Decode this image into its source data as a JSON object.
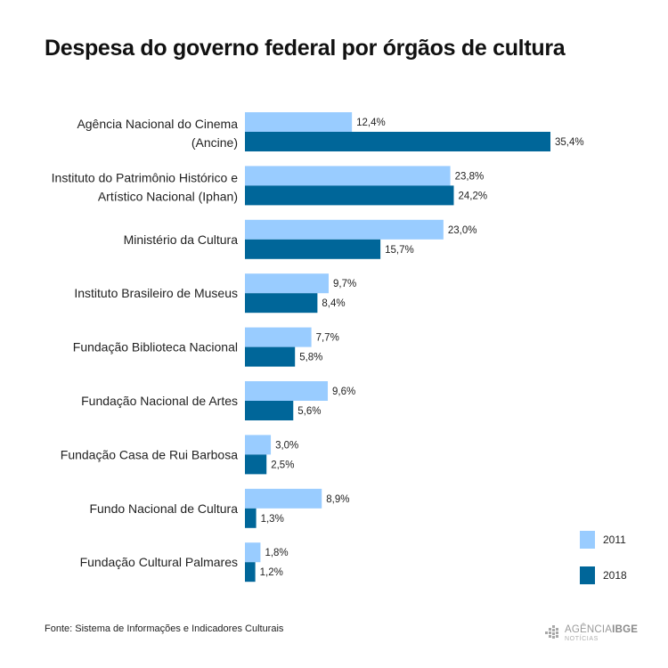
{
  "title": "Despesa do governo federal por órgãos de cultura",
  "source": "Fonte:  Sistema de Informações e Indicadores Culturais",
  "logo": {
    "brand": "AGÊNCIA",
    "brand_bold": "IBGE",
    "sub": "NOTÍCIAS"
  },
  "colors": {
    "2011": "#99ccff",
    "2018": "#006699"
  },
  "legend": [
    {
      "label": "2011",
      "color": "#99ccff"
    },
    {
      "label": "2018",
      "color": "#006699"
    }
  ],
  "chart_data": {
    "type": "bar",
    "orientation": "horizontal",
    "title": "Despesa do governo federal por órgãos de cultura",
    "categories": [
      [
        "Agência Nacional do Cinema",
        "(Ancine)"
      ],
      [
        "Instituto do Patrimônio Histórico e",
        "Artístico Nacional (Iphan)"
      ],
      [
        "Ministério da Cultura"
      ],
      [
        "Instituto Brasileiro de Museus"
      ],
      [
        "Fundação Biblioteca Nacional"
      ],
      [
        "Fundação Nacional de Artes"
      ],
      [
        "Fundação Casa de Rui Barbosa"
      ],
      [
        "Fundo Nacional de Cultura"
      ],
      [
        "Fundação Cultural Palmares"
      ]
    ],
    "series": [
      {
        "name": "2011",
        "color": "#99ccff",
        "values": [
          12.4,
          23.8,
          23.0,
          9.7,
          7.7,
          9.6,
          3.0,
          8.9,
          1.8
        ],
        "labels": [
          "12,4%",
          "23,8%",
          "23,0%",
          "9,7%",
          "7,7%",
          "9,6%",
          "3,0%",
          "8,9%",
          "1,8%"
        ]
      },
      {
        "name": "2018",
        "color": "#006699",
        "values": [
          35.4,
          24.2,
          15.7,
          8.4,
          5.8,
          5.6,
          2.5,
          1.3,
          1.2
        ],
        "labels": [
          "35,4%",
          "24,2%",
          "15,7%",
          "8,4%",
          "5,8%",
          "5,6%",
          "2,5%",
          "1,3%",
          "1,2%"
        ]
      }
    ],
    "unit": "%",
    "xlim": [
      0,
      35.4
    ],
    "grid": false,
    "legend_position": "bottom-right"
  }
}
